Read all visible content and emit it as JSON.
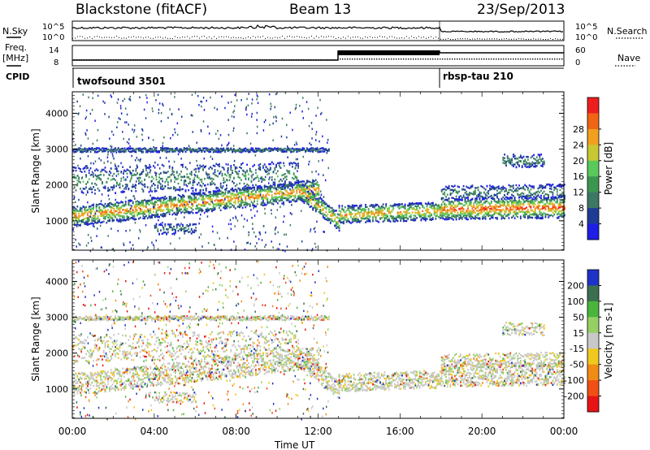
{
  "header": {
    "station": "Blackstone (fitACF)",
    "beam": "Beam 13",
    "date": "23/Sep/2013"
  },
  "left_labels": {
    "nsky": "N.Sky",
    "freq": "Freq.",
    "freq_unit": "[MHz]",
    "cpid": "CPID"
  },
  "right_labels": {
    "nsearch": "N.Search",
    "nave": "Nave"
  },
  "noise_axis": {
    "left_ticks": [
      "10^5",
      "10^0"
    ],
    "right_ticks": [
      "10^5",
      "10^0"
    ]
  },
  "freq_axis": {
    "left_ticks": [
      "14",
      "8"
    ],
    "right_ticks": [
      "60",
      "0"
    ]
  },
  "cpid_entries": [
    {
      "label": "twofsound 3501",
      "start_hour": 0
    },
    {
      "label": "rbsp-tau 210",
      "start_hour": 18
    }
  ],
  "chart_data": [
    {
      "type": "heatmap",
      "title": "Power",
      "xlabel": "Time UT",
      "ylabel": "Slant Range [km]",
      "xlim_hours": [
        0,
        24
      ],
      "ylim": [
        180,
        4600
      ],
      "x_ticks": [
        "00:00",
        "04:00",
        "08:00",
        "12:00",
        "16:00",
        "20:00",
        "00:00"
      ],
      "y_ticks": [
        "1000",
        "2000",
        "3000",
        "4000"
      ],
      "colorbar": {
        "label": "Power [dB]",
        "ticks": [
          "4",
          "8",
          "12",
          "16",
          "20",
          "24",
          "28"
        ],
        "colors": [
          "#1e1ee6",
          "#1e3c96",
          "#3c7864",
          "#3c9650",
          "#5ac85a",
          "#c8c832",
          "#f0a01e",
          "#f06414",
          "#ee1e1e"
        ]
      },
      "scatter_bands": [
        {
          "start_h": 0.0,
          "end_h": 12.0,
          "center_km": [
            1150,
            1900
          ],
          "width_km": 280,
          "intensity": 0.85
        },
        {
          "start_h": 0.0,
          "end_h": 11.0,
          "center_km": [
            2150,
            2300
          ],
          "width_km": 380,
          "intensity": 0.4
        },
        {
          "start_h": 11.0,
          "end_h": 13.0,
          "center_km": [
            1900,
            1000
          ],
          "width_km": 250,
          "intensity": 0.8
        },
        {
          "start_h": 13.0,
          "end_h": 18.0,
          "center_km": [
            1200,
            1300
          ],
          "width_km": 250,
          "intensity": 0.8
        },
        {
          "start_h": 18.0,
          "end_h": 24.0,
          "center_km": [
            1350,
            1400
          ],
          "width_km": 300,
          "intensity": 0.95
        },
        {
          "start_h": 18.0,
          "end_h": 24.0,
          "center_km": [
            1800,
            1850
          ],
          "width_km": 200,
          "intensity": 0.35
        },
        {
          "start_h": 0.0,
          "end_h": 12.5,
          "center_km": [
            3000,
            3000
          ],
          "width_km": 60,
          "intensity": 0.3
        },
        {
          "start_h": 21.0,
          "end_h": 23.0,
          "center_km": [
            2700,
            2700
          ],
          "width_km": 180,
          "intensity": 0.35
        },
        {
          "start_h": 4.0,
          "end_h": 6.0,
          "center_km": [
            800,
            800
          ],
          "width_km": 150,
          "intensity": 0.3
        }
      ]
    },
    {
      "type": "heatmap",
      "title": "Velocity",
      "xlabel": "Time UT",
      "ylabel": "Slant Range [km]",
      "xlim_hours": [
        0,
        24
      ],
      "ylim": [
        180,
        4600
      ],
      "x_ticks": [
        "00:00",
        "04:00",
        "08:00",
        "12:00",
        "16:00",
        "20:00",
        "00:00"
      ],
      "y_ticks": [
        "1000",
        "2000",
        "3000",
        "4000"
      ],
      "colorbar": {
        "label": "Velocity [m s-1]",
        "ticks": [
          "200",
          "100",
          "50",
          "15",
          "-15",
          "-50",
          "-100",
          "-200"
        ],
        "colors": [
          "#1e32c8",
          "#3c6e50",
          "#4ab43c",
          "#96d064",
          "#c8c8c8",
          "#f0c81e",
          "#f08c14",
          "#f05014",
          "#e61414"
        ]
      },
      "scatter_bands": [
        {
          "start_h": 0.0,
          "end_h": 12.0,
          "center_km": [
            1150,
            1900
          ],
          "width_km": 300,
          "intensity": 0.7
        },
        {
          "start_h": 0.0,
          "end_h": 11.0,
          "center_km": [
            2150,
            2300
          ],
          "width_km": 380,
          "intensity": 0.35
        },
        {
          "start_h": 11.0,
          "end_h": 13.0,
          "center_km": [
            1900,
            1000
          ],
          "width_km": 250,
          "intensity": 0.7
        },
        {
          "start_h": 13.0,
          "end_h": 18.0,
          "center_km": [
            1200,
            1300
          ],
          "width_km": 250,
          "intensity": 0.7
        },
        {
          "start_h": 18.0,
          "end_h": 24.0,
          "center_km": [
            1400,
            1450
          ],
          "width_km": 320,
          "intensity": 0.85
        },
        {
          "start_h": 18.0,
          "end_h": 24.0,
          "center_km": [
            1800,
            1850
          ],
          "width_km": 200,
          "intensity": 0.35
        },
        {
          "start_h": 0.0,
          "end_h": 12.5,
          "center_km": [
            3000,
            3000
          ],
          "width_km": 60,
          "intensity": 0.3
        },
        {
          "start_h": 21.0,
          "end_h": 23.0,
          "center_km": [
            2700,
            2700
          ],
          "width_km": 180,
          "intensity": 0.35
        },
        {
          "start_h": 4.0,
          "end_h": 6.0,
          "center_km": [
            800,
            800
          ],
          "width_km": 150,
          "intensity": 0.3
        }
      ]
    }
  ]
}
